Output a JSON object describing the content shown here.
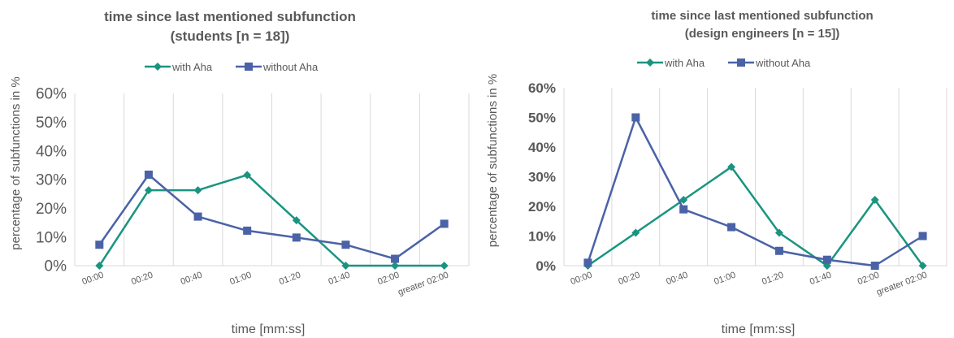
{
  "chart_data": [
    {
      "type": "line",
      "title": "time since last mentioned subfunction",
      "subtitle": "(students [n = 18])",
      "xlabel": "time [mm:ss]",
      "ylabel": "percentage of subfunctions in %",
      "categories": [
        "00:00",
        "00:20",
        "00:40",
        "01:00",
        "01:20",
        "01:40",
        "02:00",
        "greater 02:00"
      ],
      "ylim": [
        0,
        60
      ],
      "yticks": [
        "0%",
        "10%",
        "20%",
        "30%",
        "40%",
        "50%",
        "60%"
      ],
      "grid": "vertical",
      "legend": "top",
      "series": [
        {
          "name": "with Aha",
          "color": "#1a9480",
          "marker": "diamond",
          "values": [
            0,
            26.3,
            26.3,
            31.6,
            15.8,
            0,
            0,
            0
          ]
        },
        {
          "name": "without Aha",
          "color": "#4a62a6",
          "marker": "square",
          "values": [
            7.3,
            31.7,
            17.1,
            12.2,
            9.8,
            7.3,
            2.4,
            14.6
          ]
        }
      ]
    },
    {
      "type": "line",
      "title": "time since last mentioned subfunction",
      "subtitle": "(design engineers [n = 15])",
      "xlabel": "time [mm:ss]",
      "ylabel": "percentage of subfunctions in %",
      "categories": [
        "00:00",
        "00:20",
        "00:40",
        "01:00",
        "01:20",
        "01:40",
        "02:00",
        "greater 02:00"
      ],
      "ylim": [
        0,
        60
      ],
      "yticks": [
        "0%",
        "10%",
        "20%",
        "30%",
        "40%",
        "50%",
        "60%"
      ],
      "grid": "vertical",
      "legend": "top",
      "series": [
        {
          "name": "with Aha",
          "color": "#1a9480",
          "marker": "diamond",
          "values": [
            0,
            11.1,
            22.2,
            33.3,
            11.1,
            0,
            22.2,
            0
          ]
        },
        {
          "name": "without Aha",
          "color": "#4a62a6",
          "marker": "square",
          "values": [
            1,
            50,
            19,
            13,
            5,
            2,
            0,
            10
          ]
        }
      ]
    }
  ]
}
